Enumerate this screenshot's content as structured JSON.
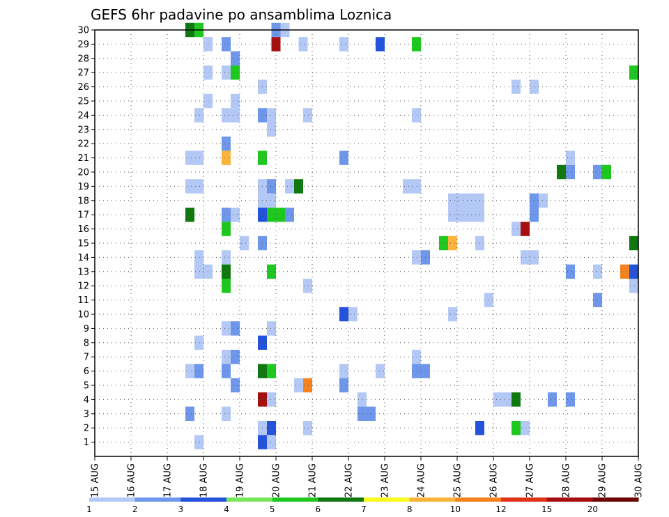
{
  "chart_data": {
    "type": "heatmap",
    "title": "GEFS 6hr padavine po ansamblima Loznica",
    "xlabel": "",
    "ylabel": "",
    "x_tick_labels": [
      "15 AUG",
      "16 AUG",
      "17 AUG",
      "18 AUG",
      "19 AUG",
      "20 AUG",
      "21 AUG",
      "22 AUG",
      "23 AUG",
      "24 AUG",
      "25 AUG",
      "26 AUG",
      "27 AUG",
      "28 AUG",
      "29 AUG",
      "30 AUG"
    ],
    "xlim_days": [
      15,
      30
    ],
    "ylim": [
      0,
      30
    ],
    "y_tick_labels": [
      1,
      2,
      3,
      4,
      5,
      6,
      7,
      8,
      9,
      10,
      11,
      12,
      13,
      14,
      15,
      16,
      17,
      18,
      19,
      20,
      21,
      22,
      23,
      24,
      25,
      26,
      27,
      28,
      29,
      30
    ],
    "grid": true,
    "levels": [
      1,
      2,
      3,
      4,
      5,
      6,
      7,
      8,
      10,
      12,
      15,
      20
    ],
    "colors": [
      "#b4c8f5",
      "#6e96ea",
      "#2352db",
      "#78e65a",
      "#1ec81e",
      "#0f780f",
      "#fafa1e",
      "#fab43c",
      "#f5821e",
      "#e13219",
      "#a50f0f",
      "#6e0505"
    ],
    "cell_width_days": 0.25,
    "cells": [
      {
        "day": 17.625,
        "member": 30,
        "level": 6
      },
      {
        "day": 17.875,
        "member": 30,
        "level": 5
      },
      {
        "day": 20,
        "member": 30,
        "level": 2
      },
      {
        "day": 20.25,
        "member": 30,
        "level": 1
      },
      {
        "day": 18.125,
        "member": 29,
        "level": 1
      },
      {
        "day": 18.625,
        "member": 29,
        "level": 2
      },
      {
        "day": 20,
        "member": 29,
        "level": 15
      },
      {
        "day": 20.75,
        "member": 29,
        "level": 1
      },
      {
        "day": 21.875,
        "member": 29,
        "level": 1
      },
      {
        "day": 22.875,
        "member": 29,
        "level": 3
      },
      {
        "day": 23.875,
        "member": 29,
        "level": 5
      },
      {
        "day": 18.875,
        "member": 28,
        "level": 2
      },
      {
        "day": 18.125,
        "member": 27,
        "level": 1
      },
      {
        "day": 18.625,
        "member": 27,
        "level": 1
      },
      {
        "day": 18.875,
        "member": 27,
        "level": 5
      },
      {
        "day": 29.875,
        "member": 27,
        "level": 5
      },
      {
        "day": 19.625,
        "member": 26,
        "level": 1
      },
      {
        "day": 26.625,
        "member": 26,
        "level": 1
      },
      {
        "day": 27.125,
        "member": 26,
        "level": 1
      },
      {
        "day": 18.125,
        "member": 25,
        "level": 1
      },
      {
        "day": 18.875,
        "member": 25,
        "level": 1
      },
      {
        "day": 17.875,
        "member": 24,
        "level": 1
      },
      {
        "day": 18.625,
        "member": 24,
        "level": 1
      },
      {
        "day": 18.875,
        "member": 24,
        "level": 1
      },
      {
        "day": 19.625,
        "member": 24,
        "level": 2
      },
      {
        "day": 19.875,
        "member": 24,
        "level": 1
      },
      {
        "day": 20.875,
        "member": 24,
        "level": 1
      },
      {
        "day": 23.875,
        "member": 24,
        "level": 1
      },
      {
        "day": 19.875,
        "member": 23,
        "level": 1
      },
      {
        "day": 18.625,
        "member": 22,
        "level": 2
      },
      {
        "day": 17.625,
        "member": 21,
        "level": 1
      },
      {
        "day": 17.875,
        "member": 21,
        "level": 1
      },
      {
        "day": 18.625,
        "member": 21,
        "level": 8
      },
      {
        "day": 19.625,
        "member": 21,
        "level": 5
      },
      {
        "day": 21.875,
        "member": 21,
        "level": 2
      },
      {
        "day": 27.875,
        "member": 20,
        "level": 6
      },
      {
        "day": 28.125,
        "member": 20,
        "level": 2
      },
      {
        "day": 28.875,
        "member": 20,
        "level": 2
      },
      {
        "day": 29.125,
        "member": 20,
        "level": 5
      },
      {
        "day": 28.125,
        "member": 21,
        "level": 1
      },
      {
        "day": 17.625,
        "member": 19,
        "level": 1
      },
      {
        "day": 17.875,
        "member": 19,
        "level": 1
      },
      {
        "day": 19.625,
        "member": 19,
        "level": 1
      },
      {
        "day": 19.875,
        "member": 19,
        "level": 2
      },
      {
        "day": 20.375,
        "member": 19,
        "level": 1
      },
      {
        "day": 20.625,
        "member": 19,
        "level": 6
      },
      {
        "day": 23.625,
        "member": 19,
        "level": 1
      },
      {
        "day": 23.875,
        "member": 19,
        "level": 1
      },
      {
        "day": 19.625,
        "member": 18,
        "level": 1
      },
      {
        "day": 19.875,
        "member": 18,
        "level": 1
      },
      {
        "day": 24.875,
        "member": 18,
        "level": 1
      },
      {
        "day": 25.125,
        "member": 18,
        "level": 1
      },
      {
        "day": 25.375,
        "member": 18,
        "level": 1
      },
      {
        "day": 25.625,
        "member": 18,
        "level": 1
      },
      {
        "day": 27.125,
        "member": 18,
        "level": 2
      },
      {
        "day": 27.375,
        "member": 18,
        "level": 1
      },
      {
        "day": 17.625,
        "member": 17,
        "level": 6
      },
      {
        "day": 18.625,
        "member": 17,
        "level": 2
      },
      {
        "day": 18.875,
        "member": 17,
        "level": 1
      },
      {
        "day": 19.625,
        "member": 17,
        "level": 3
      },
      {
        "day": 19.875,
        "member": 17,
        "level": 5
      },
      {
        "day": 20.125,
        "member": 17,
        "level": 5
      },
      {
        "day": 20.375,
        "member": 17,
        "level": 2
      },
      {
        "day": 24.875,
        "member": 17,
        "level": 1
      },
      {
        "day": 25.125,
        "member": 17,
        "level": 1
      },
      {
        "day": 25.375,
        "member": 17,
        "level": 1
      },
      {
        "day": 25.625,
        "member": 17,
        "level": 1
      },
      {
        "day": 27.125,
        "member": 17,
        "level": 2
      },
      {
        "day": 18.625,
        "member": 16,
        "level": 5
      },
      {
        "day": 26.625,
        "member": 16,
        "level": 1
      },
      {
        "day": 26.875,
        "member": 16,
        "level": 15
      },
      {
        "day": 19.125,
        "member": 15,
        "level": 1
      },
      {
        "day": 19.625,
        "member": 15,
        "level": 2
      },
      {
        "day": 24.625,
        "member": 15,
        "level": 5
      },
      {
        "day": 24.875,
        "member": 15,
        "level": 8
      },
      {
        "day": 25.625,
        "member": 15,
        "level": 1
      },
      {
        "day": 29.875,
        "member": 15,
        "level": 6
      },
      {
        "day": 17.875,
        "member": 14,
        "level": 1
      },
      {
        "day": 18.625,
        "member": 14,
        "level": 1
      },
      {
        "day": 23.875,
        "member": 14,
        "level": 1
      },
      {
        "day": 24.125,
        "member": 14,
        "level": 2
      },
      {
        "day": 26.875,
        "member": 14,
        "level": 1
      },
      {
        "day": 27.125,
        "member": 14,
        "level": 1
      },
      {
        "day": 17.875,
        "member": 13,
        "level": 1
      },
      {
        "day": 18.125,
        "member": 13,
        "level": 1
      },
      {
        "day": 18.625,
        "member": 13,
        "level": 6
      },
      {
        "day": 19.875,
        "member": 13,
        "level": 5
      },
      {
        "day": 28.125,
        "member": 13,
        "level": 2
      },
      {
        "day": 28.875,
        "member": 13,
        "level": 1
      },
      {
        "day": 29.625,
        "member": 13,
        "level": 10
      },
      {
        "day": 29.875,
        "member": 13,
        "level": 3
      },
      {
        "day": 18.625,
        "member": 12,
        "level": 5
      },
      {
        "day": 20.875,
        "member": 12,
        "level": 1
      },
      {
        "day": 29.875,
        "member": 12,
        "level": 1
      },
      {
        "day": 25.875,
        "member": 11,
        "level": 1
      },
      {
        "day": 28.875,
        "member": 11,
        "level": 2
      },
      {
        "day": 21.875,
        "member": 10,
        "level": 3
      },
      {
        "day": 22.125,
        "member": 10,
        "level": 1
      },
      {
        "day": 24.875,
        "member": 10,
        "level": 1
      },
      {
        "day": 18.625,
        "member": 9,
        "level": 1
      },
      {
        "day": 18.875,
        "member": 9,
        "level": 2
      },
      {
        "day": 19.875,
        "member": 9,
        "level": 1
      },
      {
        "day": 17.875,
        "member": 8,
        "level": 1
      },
      {
        "day": 19.625,
        "member": 8,
        "level": 3
      },
      {
        "day": 18.625,
        "member": 7,
        "level": 1
      },
      {
        "day": 18.875,
        "member": 7,
        "level": 2
      },
      {
        "day": 23.875,
        "member": 7,
        "level": 1
      },
      {
        "day": 17.625,
        "member": 6,
        "level": 1
      },
      {
        "day": 17.875,
        "member": 6,
        "level": 2
      },
      {
        "day": 18.625,
        "member": 6,
        "level": 2
      },
      {
        "day": 19.625,
        "member": 6,
        "level": 6
      },
      {
        "day": 19.875,
        "member": 6,
        "level": 5
      },
      {
        "day": 21.875,
        "member": 6,
        "level": 1
      },
      {
        "day": 22.875,
        "member": 6,
        "level": 1
      },
      {
        "day": 23.875,
        "member": 6,
        "level": 2
      },
      {
        "day": 24.125,
        "member": 6,
        "level": 2
      },
      {
        "day": 18.875,
        "member": 5,
        "level": 2
      },
      {
        "day": 20.625,
        "member": 5,
        "level": 1
      },
      {
        "day": 20.875,
        "member": 5,
        "level": 10
      },
      {
        "day": 21.875,
        "member": 5,
        "level": 2
      },
      {
        "day": 19.625,
        "member": 4,
        "level": 15
      },
      {
        "day": 19.875,
        "member": 4,
        "level": 1
      },
      {
        "day": 22.375,
        "member": 4,
        "level": 1
      },
      {
        "day": 26.125,
        "member": 4,
        "level": 1
      },
      {
        "day": 26.375,
        "member": 4,
        "level": 1
      },
      {
        "day": 26.625,
        "member": 4,
        "level": 6
      },
      {
        "day": 27.625,
        "member": 4,
        "level": 2
      },
      {
        "day": 28.125,
        "member": 4,
        "level": 2
      },
      {
        "day": 17.625,
        "member": 3,
        "level": 2
      },
      {
        "day": 18.625,
        "member": 3,
        "level": 1
      },
      {
        "day": 22.375,
        "member": 3,
        "level": 2
      },
      {
        "day": 22.625,
        "member": 3,
        "level": 2
      },
      {
        "day": 19.625,
        "member": 2,
        "level": 1
      },
      {
        "day": 19.875,
        "member": 2,
        "level": 3
      },
      {
        "day": 20.875,
        "member": 2,
        "level": 1
      },
      {
        "day": 25.625,
        "member": 2,
        "level": 3
      },
      {
        "day": 26.625,
        "member": 2,
        "level": 5
      },
      {
        "day": 26.875,
        "member": 2,
        "level": 1
      },
      {
        "day": 17.875,
        "member": 1,
        "level": 1
      },
      {
        "day": 19.625,
        "member": 1,
        "level": 3
      },
      {
        "day": 19.875,
        "member": 1,
        "level": 1
      }
    ]
  }
}
